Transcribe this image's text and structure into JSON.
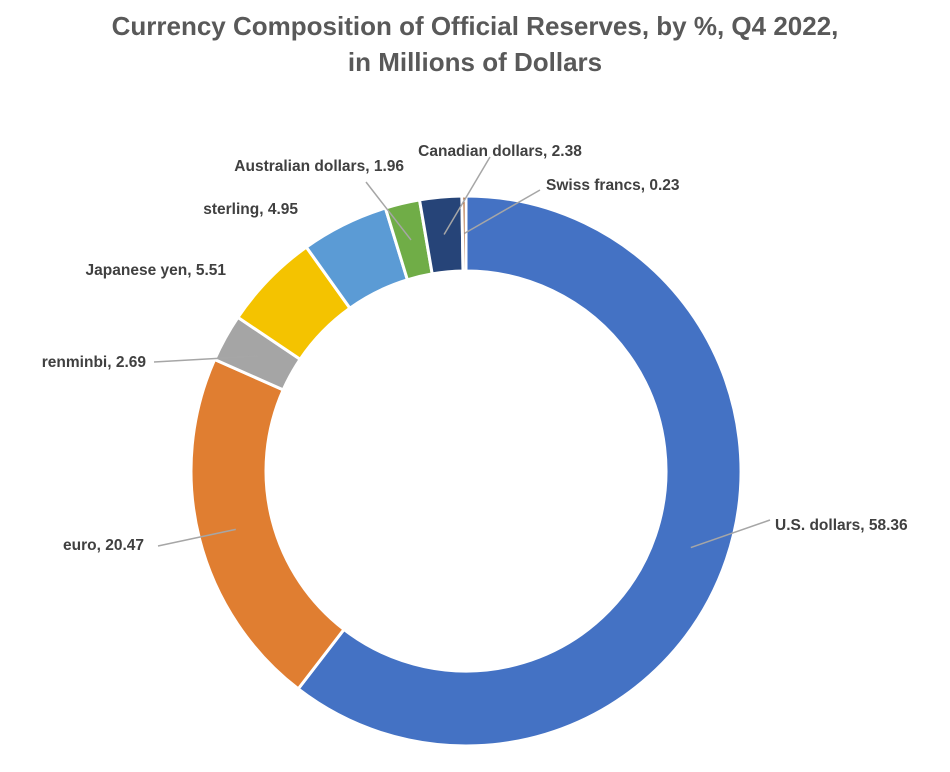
{
  "chart_data": {
    "type": "pie",
    "variant": "donut",
    "title": [
      "Currency Composition of Official Reserves, by %, Q4 2022,",
      "in Millions of Dollars"
    ],
    "slices": [
      {
        "label": "U.S. dollars, 58.36",
        "name": "U.S. dollars",
        "value": 58.36,
        "color": "#4472C4"
      },
      {
        "label": "euro, 20.47",
        "name": "euro",
        "value": 20.47,
        "color": "#E07E31"
      },
      {
        "label": "renminbi, 2.69",
        "name": "renminbi",
        "value": 2.69,
        "color": "#A5A5A5"
      },
      {
        "label": "Japanese yen, 5.51",
        "name": "Japanese yen",
        "value": 5.51,
        "color": "#F4C300"
      },
      {
        "label": "sterling, 4.95",
        "name": "sterling",
        "value": 4.95,
        "color": "#5B9BD5"
      },
      {
        "label": "Australian dollars, 1.96",
        "name": "Australian dollars",
        "value": 1.96,
        "color": "#70AD47"
      },
      {
        "label": "Canadian dollars, 2.38",
        "name": "Canadian dollars",
        "value": 2.38,
        "color": "#264478"
      },
      {
        "label": "Swiss francs, 0.23",
        "name": "Swiss francs",
        "value": 0.23,
        "color": "#9E480E"
      }
    ],
    "legend": "none",
    "data_labels": "outside-with-leader-lines"
  }
}
